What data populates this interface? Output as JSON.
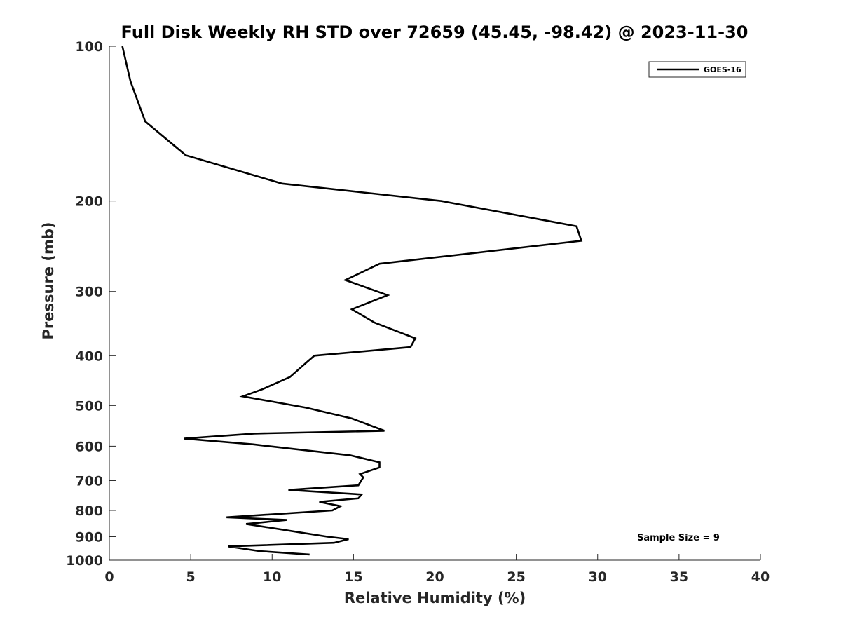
{
  "chart_data": {
    "type": "line",
    "title": "Full Disk Weekly RH STD over 72659 (45.45, -98.42) @ 2023-11-30",
    "xlabel": "Relative Humidity (%)",
    "ylabel": "Pressure (mb)",
    "xlim": [
      0,
      40
    ],
    "ylim": [
      100,
      1000
    ],
    "yscale": "log",
    "y_inverted": true,
    "grid": false,
    "legend_position": "top-right",
    "x_ticks": [
      "0",
      "5",
      "10",
      "15",
      "20",
      "25",
      "30",
      "35",
      "40"
    ],
    "x_tick_values": [
      0,
      5,
      10,
      15,
      20,
      25,
      30,
      35,
      40
    ],
    "y_ticks": [
      "100",
      "200",
      "300",
      "400",
      "500",
      "600",
      "700",
      "800",
      "900",
      "1000"
    ],
    "y_tick_values": [
      100,
      200,
      300,
      400,
      500,
      600,
      700,
      800,
      900,
      1000
    ],
    "annotation": "Sample Size = 9",
    "series": [
      {
        "name": "GOES-16",
        "color": "#000000",
        "x": [
          0.8,
          1.3,
          2.2,
          4.7,
          10.6,
          20.4,
          28.7,
          29.0,
          16.6,
          14.5,
          17.1,
          14.9,
          16.3,
          18.8,
          18.5,
          12.6,
          12.2,
          11.1,
          9.4,
          8.2,
          12.1,
          14.9,
          16.9,
          8.9,
          4.6,
          8.8,
          14.8,
          16.6,
          16.6,
          15.4,
          15.6,
          15.3,
          11.0,
          15.5,
          15.3,
          12.9,
          14.2,
          13.7,
          7.2,
          10.9,
          8.4,
          13.4,
          14.7,
          13.8,
          7.3,
          9.2,
          12.3
        ],
        "y": [
          100,
          117,
          140,
          163,
          185,
          200,
          224,
          239,
          265,
          285,
          305,
          325,
          345,
          370,
          385,
          400,
          410,
          440,
          465,
          480,
          505,
          530,
          560,
          567,
          580,
          595,
          625,
          645,
          660,
          680,
          690,
          715,
          730,
          745,
          758,
          770,
          785,
          800,
          825,
          835,
          850,
          900,
          910,
          925,
          940,
          960,
          975
        ]
      }
    ]
  }
}
